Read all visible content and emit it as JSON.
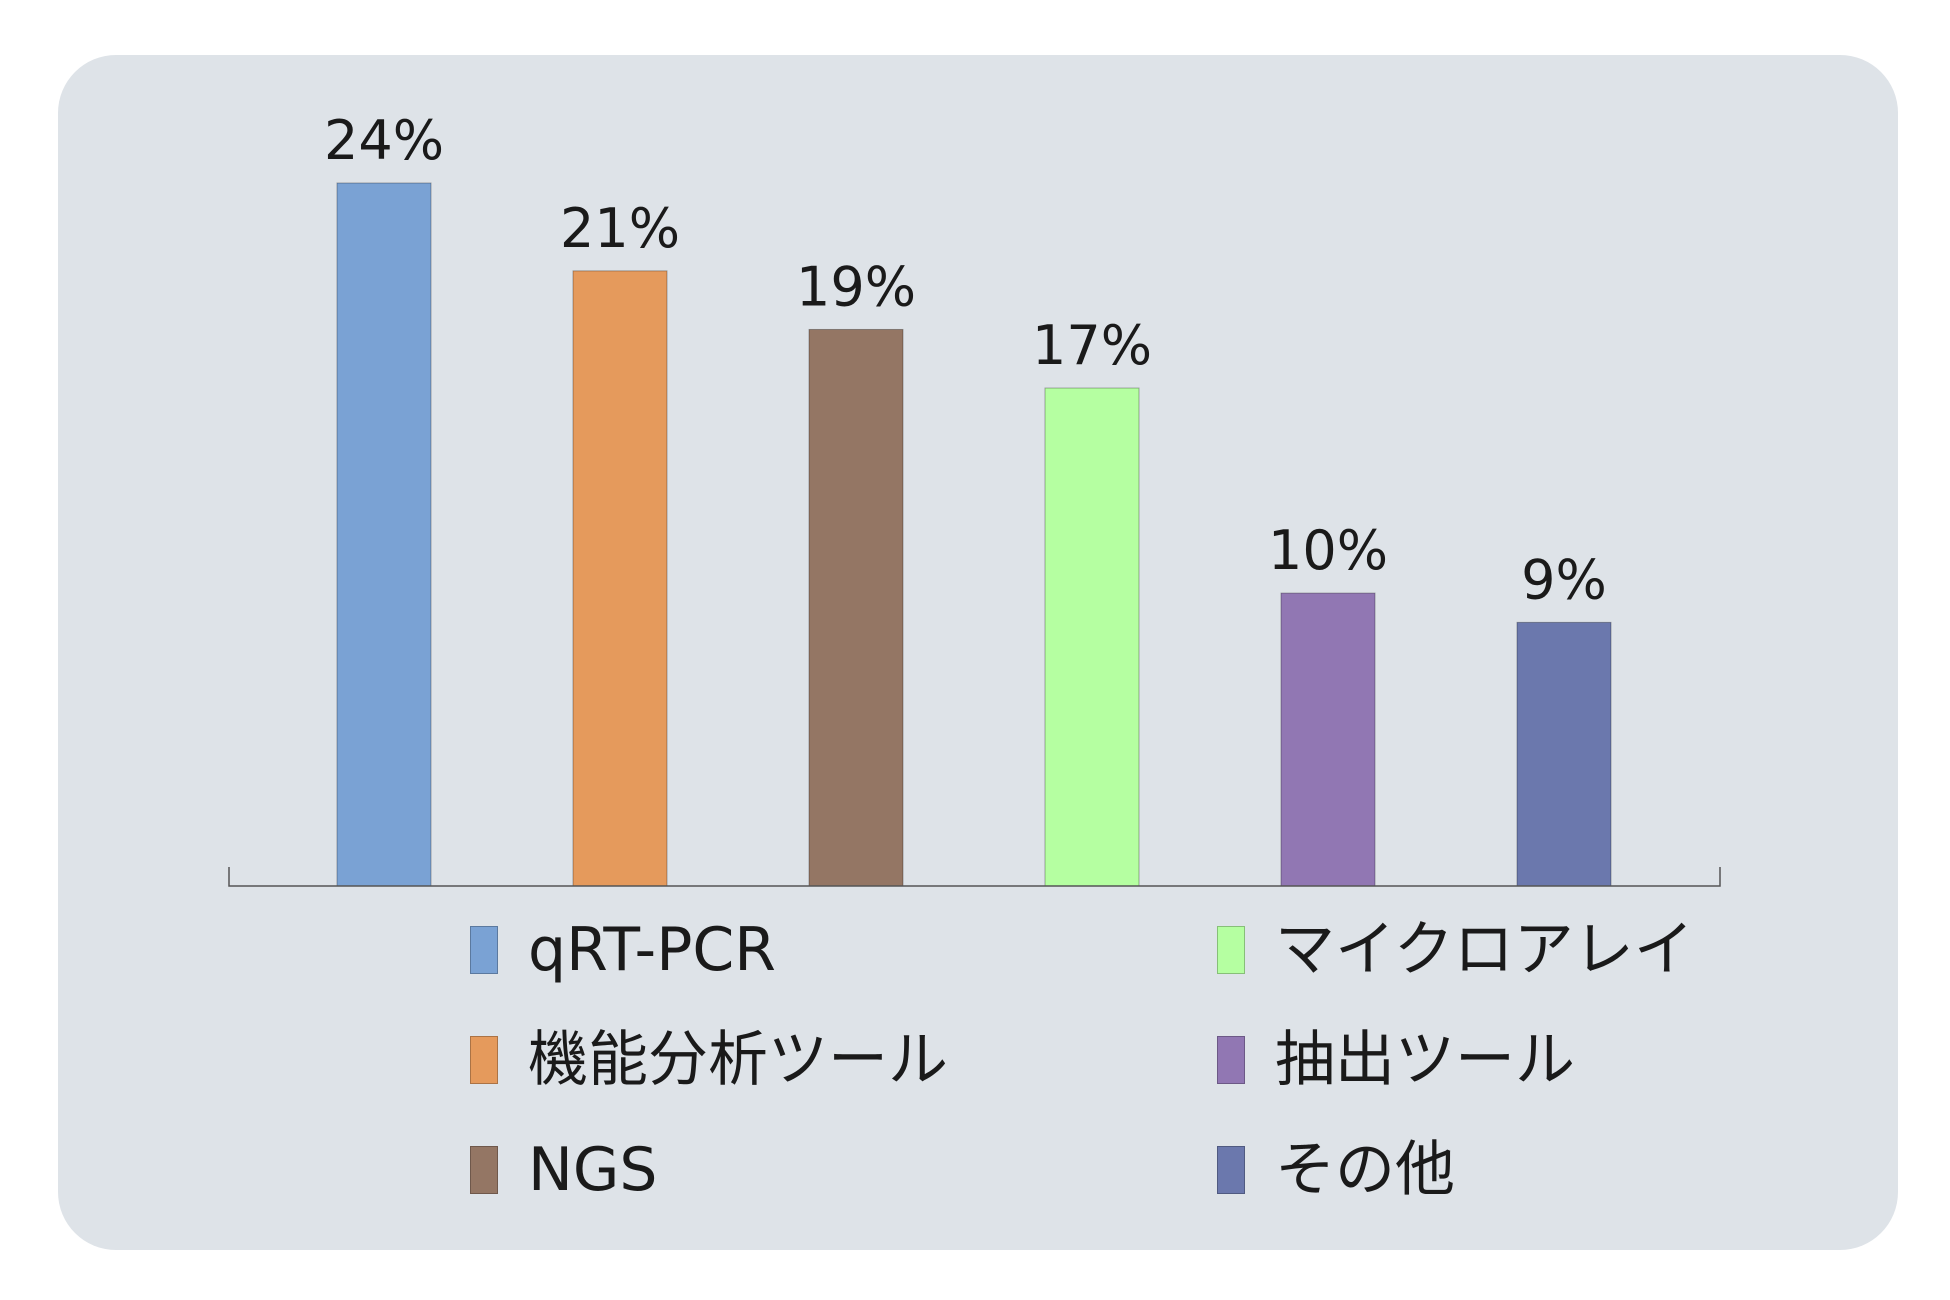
{
  "chart_data": {
    "type": "bar",
    "categories": [
      "qRT-PCR",
      "機能分析ツール",
      "NGS",
      "マイクロアレイ",
      "抽出ツール",
      "その他"
    ],
    "values": [
      24,
      21,
      19,
      17,
      10,
      9
    ],
    "value_labels": [
      "24%",
      "21%",
      "19%",
      "17%",
      "10%",
      "9%"
    ],
    "colors": [
      "#7aa2d4",
      "#e59a5c",
      "#947664",
      "#b5ffa1",
      "#9177b3",
      "#6b78ad"
    ],
    "title": "",
    "xlabel": "",
    "ylabel": "",
    "ylim": [
      0,
      24
    ],
    "grid": false,
    "legend_position": "bottom"
  },
  "legend": {
    "items": [
      {
        "label": "qRT-PCR",
        "color": "#7aa2d4"
      },
      {
        "label": "機能分析ツール",
        "color": "#e59a5c"
      },
      {
        "label": "NGS",
        "color": "#947664"
      },
      {
        "label": "マイクロアレイ",
        "color": "#b5ffa1"
      },
      {
        "label": "抽出ツール",
        "color": "#9177b3"
      },
      {
        "label": "その他",
        "color": "#6b78ad"
      }
    ]
  },
  "colors": {
    "panel_background": "#dee3e8",
    "axis": "#555555",
    "text": "#1a1a1a"
  }
}
